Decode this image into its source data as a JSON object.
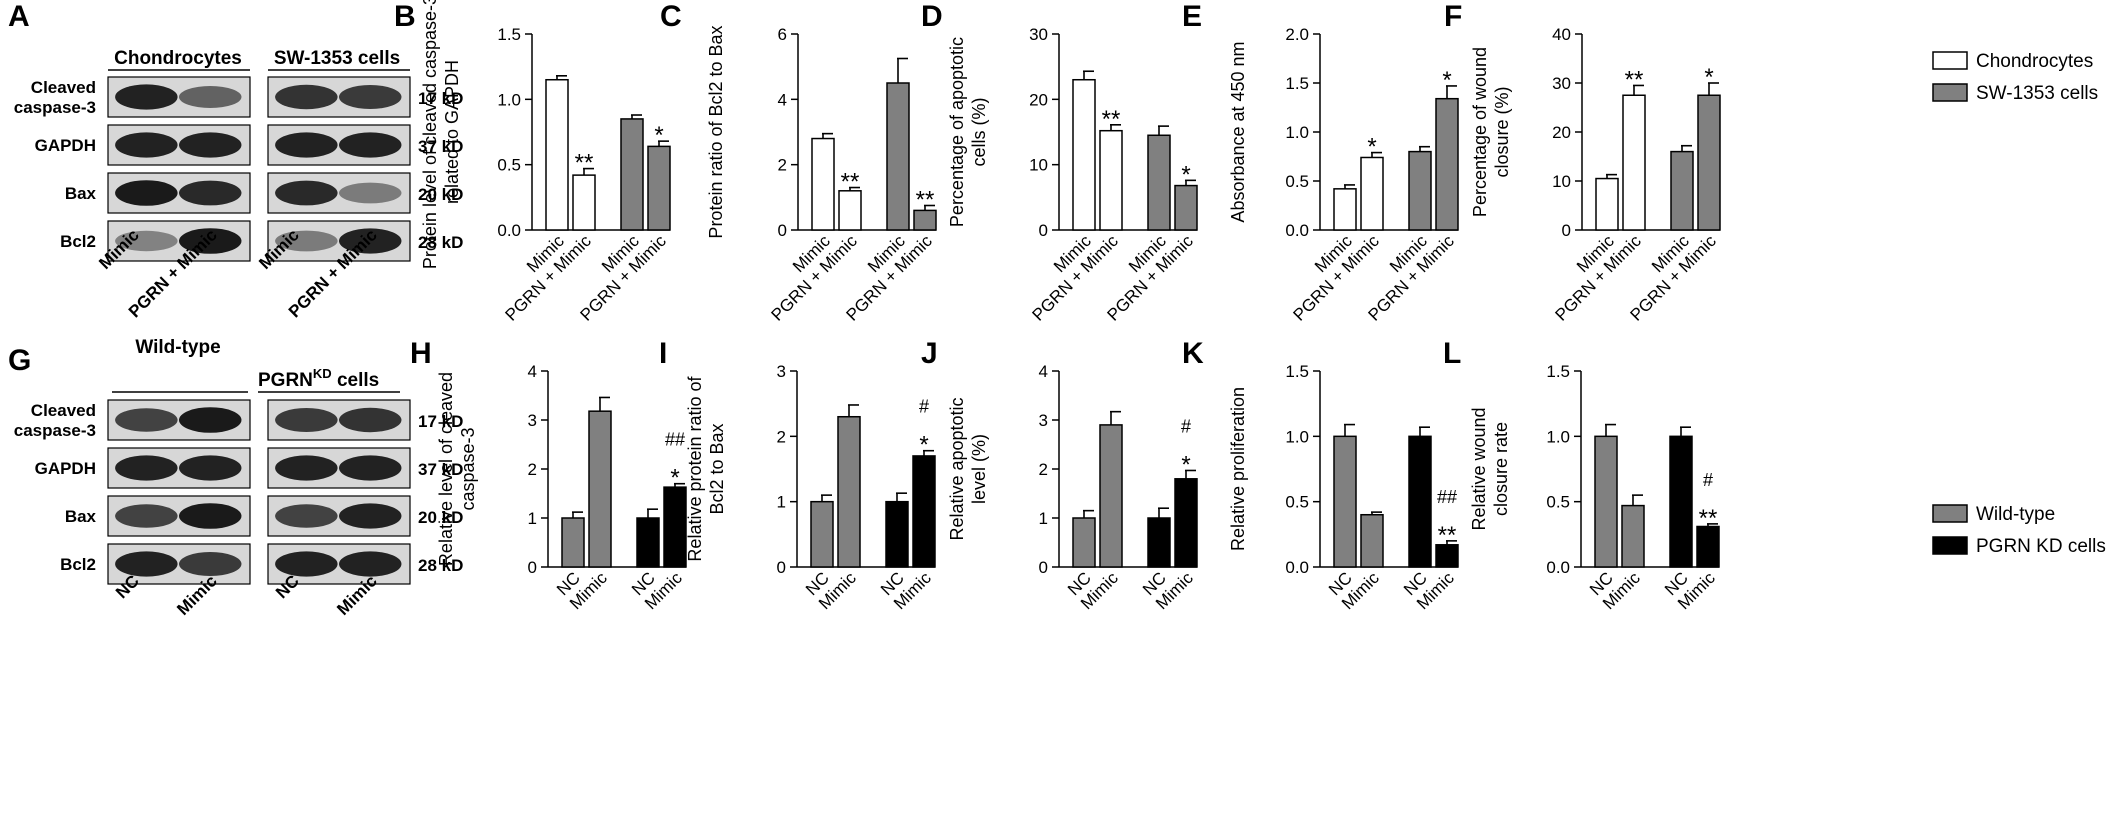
{
  "colors": {
    "chondrocytes": "#ffffff",
    "sw1353": "#808080",
    "wild_type": "#808080",
    "pgrn_kd": "#000000",
    "blot_bg": "#d7d7d7",
    "band": "#1a1a1a"
  },
  "panel_a": {
    "letter": "A",
    "headers": [
      "Chondrocytes",
      "SW-1353 cells"
    ],
    "rows": [
      {
        "label": "Cleaved\ncaspase-3",
        "kd": "17 kD",
        "bands": [
          [
            0.95,
            0.55
          ],
          [
            0.85,
            0.8
          ]
        ]
      },
      {
        "label": "GAPDH",
        "kd": "37 kD",
        "bands": [
          [
            0.95,
            0.95
          ],
          [
            0.95,
            0.95
          ]
        ]
      },
      {
        "label": "Bax",
        "kd": "20 kD",
        "bands": [
          [
            1.0,
            0.9
          ],
          [
            0.9,
            0.4
          ]
        ]
      },
      {
        "label": "Bcl2",
        "kd": "28 kD",
        "bands": [
          [
            0.35,
            1.0
          ],
          [
            0.4,
            0.95
          ]
        ]
      }
    ],
    "lanes": [
      "Mimic",
      "PGRN + Mimic",
      "Mimic",
      "PGRN + Mimic"
    ]
  },
  "panel_g": {
    "letter": "G",
    "headers": [
      "Wild-type",
      "PGRN",
      "KD",
      " cells"
    ],
    "rows": [
      {
        "label": "Cleaved\ncaspase-3",
        "kd": "17 kD",
        "bands": [
          [
            0.75,
            1.0
          ],
          [
            0.8,
            0.85
          ]
        ]
      },
      {
        "label": "GAPDH",
        "kd": "37 kD",
        "bands": [
          [
            0.95,
            0.95
          ],
          [
            0.95,
            0.95
          ]
        ]
      },
      {
        "label": "Bax",
        "kd": "20 kD",
        "bands": [
          [
            0.75,
            1.0
          ],
          [
            0.75,
            0.95
          ]
        ]
      },
      {
        "label": "Bcl2",
        "kd": "28 kD",
        "bands": [
          [
            0.95,
            0.8
          ],
          [
            0.95,
            0.95
          ]
        ]
      }
    ],
    "lanes": [
      "NC",
      "Mimic",
      "NC",
      "Mimic"
    ]
  },
  "legend_top": [
    "Chondrocytes",
    "SW-1353 cells"
  ],
  "legend_bottom": [
    "Wild-type",
    "PGRN KD cells"
  ],
  "chart_data": [
    {
      "type": "bar",
      "letter": "B",
      "ylabel": "Protein level of cleaved caspase-3\nrelated to GAPDH",
      "ylim": [
        0,
        1.5
      ],
      "yticks": [
        "0.0",
        "0.5",
        "1.0",
        "1.5"
      ],
      "categories": [
        "Mimic",
        "PGRN + Mimic",
        "Mimic",
        "PGRN + Mimic"
      ],
      "groups": [
        "Chondrocytes",
        "Chondrocytes",
        "SW-1353 cells",
        "SW-1353 cells"
      ],
      "values": [
        1.15,
        0.42,
        0.85,
        0.64
      ],
      "errors": [
        0.03,
        0.05,
        0.03,
        0.04
      ],
      "annotations": [
        [],
        [
          "**"
        ],
        [],
        [
          "*"
        ]
      ]
    },
    {
      "type": "bar",
      "letter": "C",
      "ylabel": "Protein ratio of Bcl2 to Bax",
      "ylim": [
        0,
        6
      ],
      "yticks": [
        "0",
        "2",
        "4",
        "6"
      ],
      "categories": [
        "Mimic",
        "PGRN + Mimic",
        "Mimic",
        "PGRN + Mimic"
      ],
      "groups": [
        "Chondrocytes",
        "Chondrocytes",
        "SW-1353 cells",
        "SW-1353 cells"
      ],
      "values": [
        2.8,
        1.2,
        4.5,
        0.6
      ],
      "errors": [
        0.15,
        0.1,
        0.75,
        0.15
      ],
      "annotations": [
        [],
        [
          "**"
        ],
        [],
        [
          "**"
        ]
      ]
    },
    {
      "type": "bar",
      "letter": "D",
      "ylabel": "Percentage of apoptotic\ncells (%)",
      "ylim": [
        0,
        30
      ],
      "yticks": [
        "0",
        "10",
        "20",
        "30"
      ],
      "categories": [
        "Mimic",
        "PGRN + Mimic",
        "Mimic",
        "PGRN + Mimic"
      ],
      "groups": [
        "Chondrocytes",
        "Chondrocytes",
        "SW-1353 cells",
        "SW-1353 cells"
      ],
      "values": [
        23.0,
        15.2,
        14.5,
        6.8
      ],
      "errors": [
        1.3,
        0.9,
        1.4,
        0.8
      ],
      "annotations": [
        [],
        [
          "**"
        ],
        [],
        [
          "*"
        ]
      ]
    },
    {
      "type": "bar",
      "letter": "E",
      "ylabel": "Absorbance at 450 nm",
      "ylim": [
        0,
        2.0
      ],
      "yticks": [
        "0.0",
        "0.5",
        "1.0",
        "1.5",
        "2.0"
      ],
      "categories": [
        "Mimic",
        "PGRN + Mimic",
        "Mimic",
        "PGRN + Mimic"
      ],
      "groups": [
        "Chondrocytes",
        "Chondrocytes",
        "SW-1353 cells",
        "SW-1353 cells"
      ],
      "values": [
        0.42,
        0.74,
        0.8,
        1.34
      ],
      "errors": [
        0.04,
        0.05,
        0.05,
        0.13
      ],
      "annotations": [
        [],
        [
          "*"
        ],
        [],
        [
          "*"
        ]
      ]
    },
    {
      "type": "bar",
      "letter": "F",
      "ylabel": "Percentage of wound\nclosure (%)",
      "ylim": [
        0,
        40
      ],
      "yticks": [
        "0",
        "10",
        "20",
        "30",
        "40"
      ],
      "categories": [
        "Mimic",
        "PGRN + Mimic",
        "Mimic",
        "PGRN + Mimic"
      ],
      "groups": [
        "Chondrocytes",
        "Chondrocytes",
        "SW-1353 cells",
        "SW-1353 cells"
      ],
      "values": [
        10.5,
        27.5,
        16.0,
        27.5
      ],
      "errors": [
        0.8,
        2.0,
        1.2,
        2.5
      ],
      "annotations": [
        [],
        [
          "**"
        ],
        [],
        [
          "*"
        ]
      ]
    },
    {
      "type": "bar",
      "letter": "H",
      "ylabel": "Relative level of cleaved\ncaspase-3",
      "ylim": [
        0,
        4
      ],
      "yticks": [
        "0",
        "1",
        "2",
        "3",
        "4"
      ],
      "categories": [
        "NC",
        "Mimic",
        "NC",
        "Mimic"
      ],
      "groups": [
        "Wild-type",
        "Wild-type",
        "PGRN KD cells",
        "PGRN KD cells"
      ],
      "values": [
        1.0,
        3.18,
        1.0,
        1.63
      ],
      "errors": [
        0.12,
        0.28,
        0.18,
        0.07
      ],
      "annotations": [
        [],
        [],
        [],
        [
          "*",
          "##"
        ]
      ]
    },
    {
      "type": "bar",
      "letter": "I",
      "ylabel": "Relative protein ratio of\nBcl2 to Bax",
      "ylim": [
        0,
        3
      ],
      "yticks": [
        "0",
        "1",
        "2",
        "3"
      ],
      "categories": [
        "NC",
        "Mimic",
        "NC",
        "Mimic"
      ],
      "groups": [
        "Wild-type",
        "Wild-type",
        "PGRN KD cells",
        "PGRN KD cells"
      ],
      "values": [
        1.0,
        2.3,
        1.0,
        1.7
      ],
      "errors": [
        0.1,
        0.18,
        0.13,
        0.08
      ],
      "annotations": [
        [],
        [],
        [],
        [
          "*",
          "#"
        ]
      ]
    },
    {
      "type": "bar",
      "letter": "J",
      "ylabel": "Relative apoptotic\nlevel (%)",
      "ylim": [
        0,
        4
      ],
      "yticks": [
        "0",
        "1",
        "2",
        "3",
        "4"
      ],
      "categories": [
        "NC",
        "Mimic",
        "NC",
        "Mimic"
      ],
      "groups": [
        "Wild-type",
        "Wild-type",
        "PGRN KD cells",
        "PGRN KD cells"
      ],
      "values": [
        1.0,
        2.9,
        1.0,
        1.8
      ],
      "errors": [
        0.15,
        0.27,
        0.2,
        0.17
      ],
      "annotations": [
        [],
        [],
        [],
        [
          "*",
          "#"
        ]
      ]
    },
    {
      "type": "bar",
      "letter": "K",
      "ylabel": "Relative proliferation",
      "ylim": [
        0,
        1.5
      ],
      "yticks": [
        "0.0",
        "0.5",
        "1.0",
        "1.5"
      ],
      "categories": [
        "NC",
        "Mimic",
        "NC",
        "Mimic"
      ],
      "groups": [
        "Wild-type",
        "Wild-type",
        "PGRN KD cells",
        "PGRN KD cells"
      ],
      "values": [
        1.0,
        0.4,
        1.0,
        0.17
      ],
      "errors": [
        0.09,
        0.02,
        0.07,
        0.03
      ],
      "annotations": [
        [],
        [],
        [],
        [
          "**",
          "##"
        ]
      ]
    },
    {
      "type": "bar",
      "letter": "L",
      "ylabel": "Relative wound\nclosure rate",
      "ylim": [
        0,
        1.5
      ],
      "yticks": [
        "0.0",
        "0.5",
        "1.0",
        "1.5"
      ],
      "categories": [
        "NC",
        "Mimic",
        "NC",
        "Mimic"
      ],
      "groups": [
        "Wild-type",
        "Wild-type",
        "PGRN KD cells",
        "PGRN KD cells"
      ],
      "values": [
        1.0,
        0.47,
        1.0,
        0.31
      ],
      "errors": [
        0.09,
        0.08,
        0.07,
        0.02
      ],
      "annotations": [
        [],
        [],
        [],
        [
          "**",
          "#"
        ]
      ]
    }
  ]
}
